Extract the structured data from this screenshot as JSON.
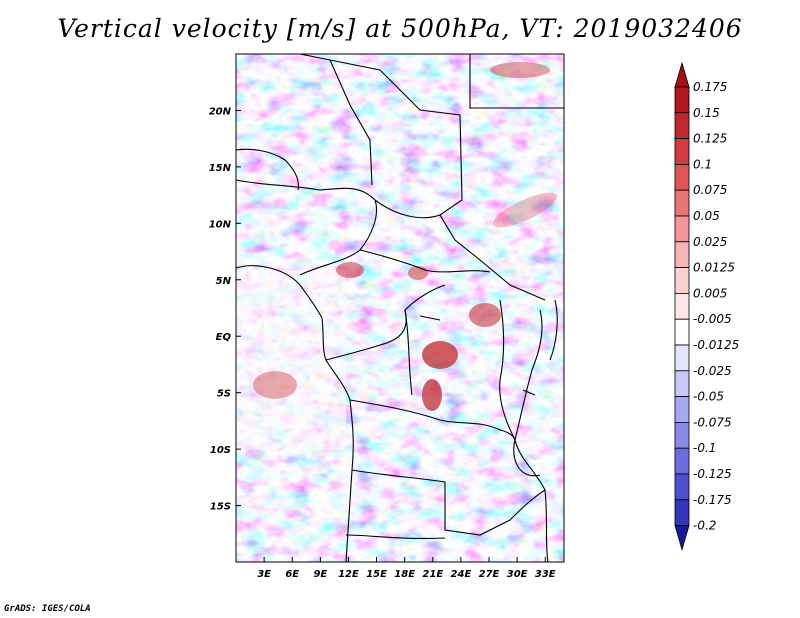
{
  "title": "Vertical velocity [m/s] at 500hPa, VT: 2019032406",
  "credit": "GrADS: IGES/COLA",
  "map": {
    "lon_range": [
      0,
      35
    ],
    "lat_range": [
      -20,
      25
    ],
    "x_ticks": [
      {
        "value": 3,
        "label": "3E"
      },
      {
        "value": 6,
        "label": "6E"
      },
      {
        "value": 9,
        "label": "9E"
      },
      {
        "value": 12,
        "label": "12E"
      },
      {
        "value": 15,
        "label": "15E"
      },
      {
        "value": 18,
        "label": "18E"
      },
      {
        "value": 21,
        "label": "21E"
      },
      {
        "value": 24,
        "label": "24E"
      },
      {
        "value": 27,
        "label": "27E"
      },
      {
        "value": 30,
        "label": "30E"
      },
      {
        "value": 33,
        "label": "33E"
      }
    ],
    "y_ticks": [
      {
        "value": 20,
        "label": "20N"
      },
      {
        "value": 15,
        "label": "15N"
      },
      {
        "value": 10,
        "label": "10N"
      },
      {
        "value": 5,
        "label": "5N"
      },
      {
        "value": 0,
        "label": "EQ"
      },
      {
        "value": -5,
        "label": "5S"
      },
      {
        "value": -10,
        "label": "10S"
      },
      {
        "value": -15,
        "label": "15S"
      }
    ]
  },
  "colorbar": {
    "levels": [
      {
        "label": "0.175",
        "color": "#b0181c"
      },
      {
        "label": "0.15",
        "color": "#c02a2e"
      },
      {
        "label": "0.125",
        "color": "#d23b3f"
      },
      {
        "label": "0.1",
        "color": "#e05558"
      },
      {
        "label": "0.075",
        "color": "#e87576"
      },
      {
        "label": "0.05",
        "color": "#f09697"
      },
      {
        "label": "0.025",
        "color": "#f6b5b5"
      },
      {
        "label": "0.0125",
        "color": "#fad0d0"
      },
      {
        "label": "0.005",
        "color": "#fde8e8"
      },
      {
        "label": "-0.005",
        "color": "#ffffff"
      },
      {
        "label": "-0.0125",
        "color": "#e4e4fb"
      },
      {
        "label": "-0.025",
        "color": "#c8c8f4"
      },
      {
        "label": "-0.05",
        "color": "#a8a8ee"
      },
      {
        "label": "-0.075",
        "color": "#8a8ae6"
      },
      {
        "label": "-0.1",
        "color": "#6c6cdc"
      },
      {
        "label": "-0.125",
        "color": "#4f4fcf"
      },
      {
        "label": "-0.175",
        "color": "#3434bd"
      },
      {
        "label": "-0.2",
        "color": "#2020a8"
      }
    ],
    "top_color": "#a01015",
    "bottom_color": "#1a1a95"
  }
}
